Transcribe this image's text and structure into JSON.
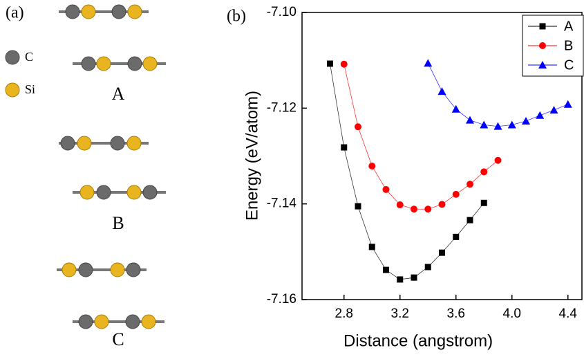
{
  "panel_a": {
    "label": "(a)",
    "legend": [
      "C",
      "Si"
    ],
    "structures": [
      "A",
      "B",
      "C"
    ]
  },
  "chart_data": {
    "type": "line",
    "panel_label": "(b)",
    "x_label": "Distance (angstrom)",
    "y_label": "Energy (eV/atom)",
    "xlim": [
      2.5,
      4.5
    ],
    "ylim": [
      -7.16,
      -7.1
    ],
    "xticks": [
      2.8,
      3.2,
      3.6,
      {
        "value": 4,
        "label": "4.0"
      },
      4.4
    ],
    "yticks": [
      {
        "value": -7.1,
        "label": "-7.10"
      },
      -7.12,
      -7.14,
      -7.16
    ],
    "legend_position": "upper right",
    "series": [
      {
        "name": "A",
        "color": "#000000",
        "marker": "square",
        "x": [
          2.7,
          2.8,
          2.9,
          3.0,
          3.1,
          3.2,
          3.3,
          3.4,
          3.5,
          3.6,
          3.7,
          3.8
        ],
        "values": [
          -7.1107,
          -7.1282,
          -7.1405,
          -7.149,
          -7.1538,
          -7.1558,
          -7.1554,
          -7.1532,
          -7.1502,
          -7.1469,
          -7.1434,
          -7.1398
        ]
      },
      {
        "name": "B",
        "color": "#ff0000",
        "marker": "circle",
        "x": [
          2.8,
          2.9,
          3.0,
          3.1,
          3.2,
          3.3,
          3.4,
          3.5,
          3.6,
          3.7,
          3.8,
          3.9
        ],
        "values": [
          -7.1108,
          -7.1239,
          -7.1321,
          -7.137,
          -7.1402,
          -7.1411,
          -7.1411,
          -7.1401,
          -7.138,
          -7.1359,
          -7.1333,
          -7.1309
        ]
      },
      {
        "name": "C",
        "color": "#0000ff",
        "marker": "triangle",
        "x": [
          3.4,
          3.5,
          3.6,
          3.7,
          3.8,
          3.9,
          4.0,
          4.1,
          4.2,
          4.3,
          4.4
        ],
        "values": [
          -7.1106,
          -7.1165,
          -7.1202,
          -7.1225,
          -7.1235,
          -7.1238,
          -7.1235,
          -7.1227,
          -7.1215,
          -7.1204,
          -7.1192
        ]
      }
    ]
  }
}
